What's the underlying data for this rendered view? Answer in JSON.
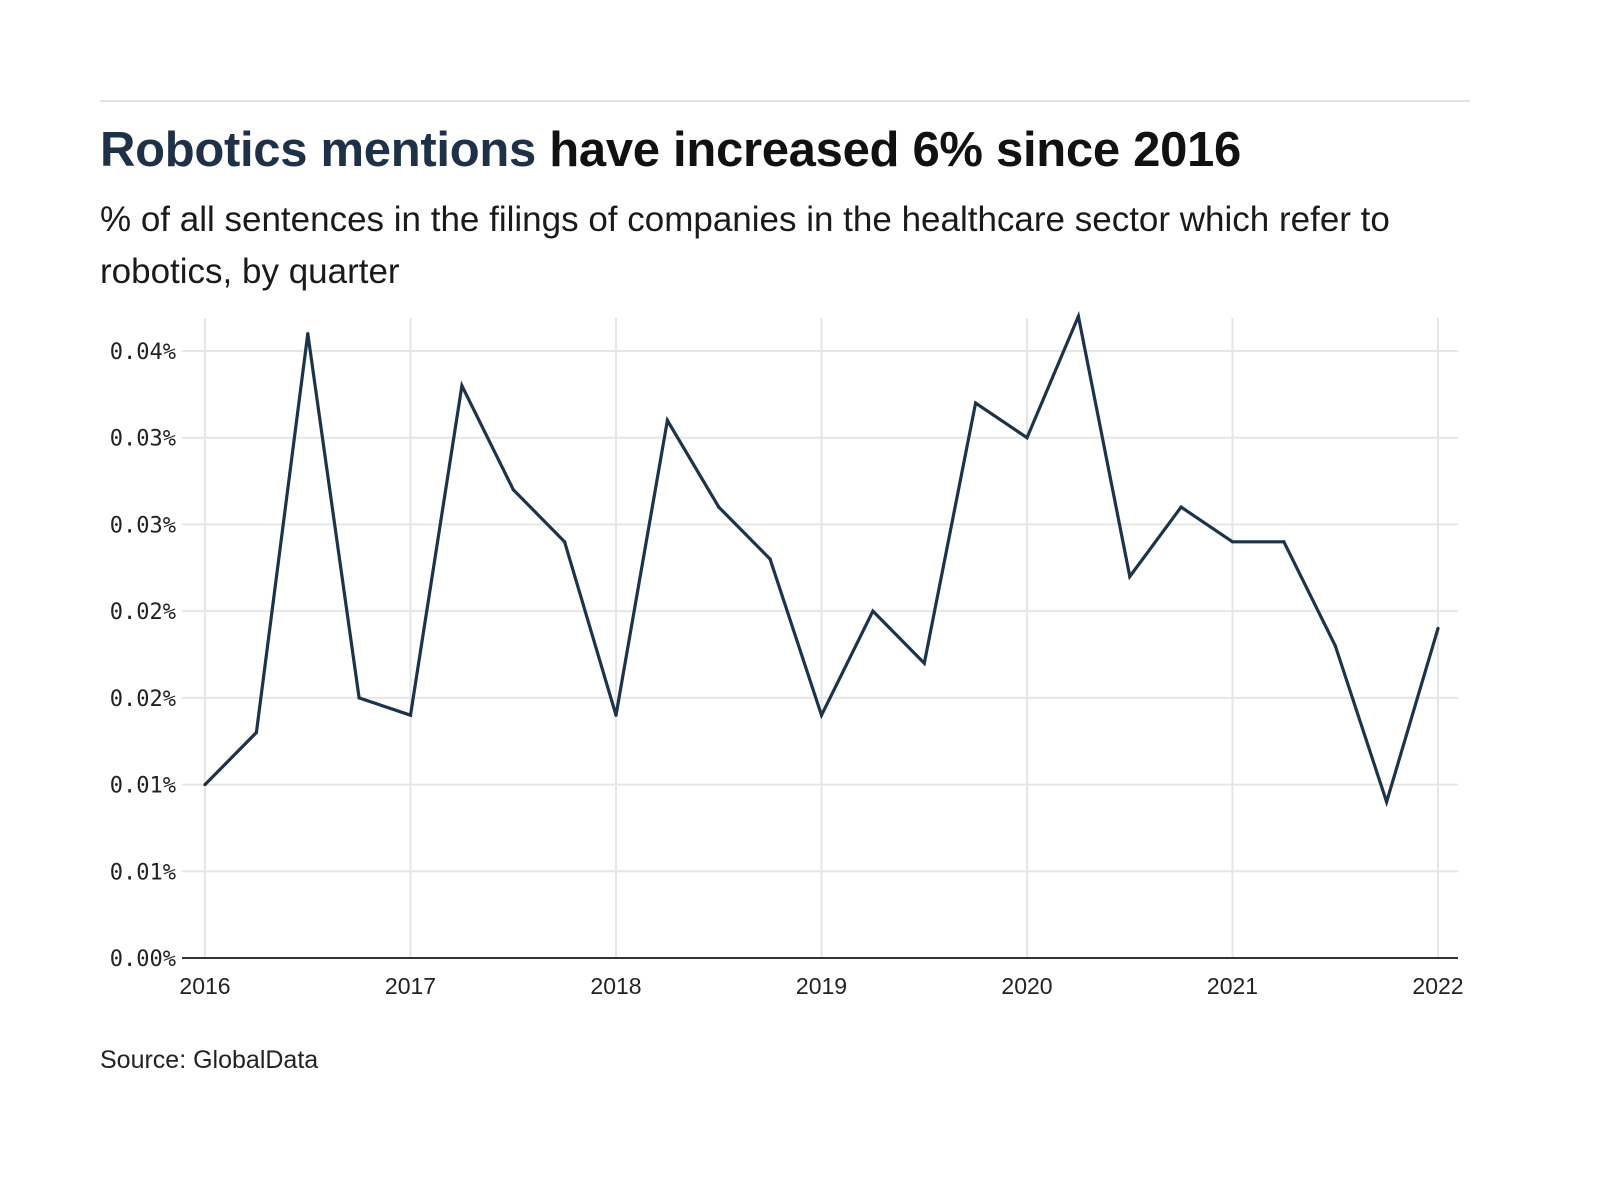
{
  "header": {
    "title_highlight": "Robotics mentions",
    "title_rest": " have increased 6% since 2016",
    "subtitle": "% of all sentences in the filings of companies in the healthcare sector which refer to robotics, by quarter"
  },
  "footer": {
    "source": "Source: GlobalData"
  },
  "colors": {
    "title_highlight": "#1e3148",
    "line": "#1c3349",
    "grid": "#e6e6e6",
    "axis": "#333333"
  },
  "chart_data": {
    "type": "line",
    "title": "Robotics mentions have increased 6% since 2016",
    "subtitle": "% of all sentences in the filings of companies in the healthcare sector which refer to robotics, by quarter",
    "xlabel": "",
    "ylabel": "",
    "grid": true,
    "legend": "none",
    "x": [
      "2016 Q1",
      "2016 Q2",
      "2016 Q3",
      "2016 Q4",
      "2017 Q1",
      "2017 Q2",
      "2017 Q3",
      "2017 Q4",
      "2018 Q1",
      "2018 Q2",
      "2018 Q3",
      "2018 Q4",
      "2019 Q1",
      "2019 Q2",
      "2019 Q3",
      "2019 Q4",
      "2020 Q1",
      "2020 Q2",
      "2020 Q3",
      "2020 Q4",
      "2021 Q1",
      "2021 Q2",
      "2021 Q3",
      "2021 Q4",
      "2022 Q1"
    ],
    "series": [
      {
        "name": "Robotics mentions (%)",
        "values": [
          0.01,
          0.013,
          0.036,
          0.015,
          0.014,
          0.033,
          0.027,
          0.024,
          0.014,
          0.031,
          0.026,
          0.023,
          0.014,
          0.02,
          0.017,
          0.032,
          0.03,
          0.037,
          0.022,
          0.026,
          0.024,
          0.024,
          0.018,
          0.009,
          0.019
        ]
      }
    ],
    "x_tick_labels": [
      "2016",
      "2017",
      "2018",
      "2019",
      "2020",
      "2021",
      "2022"
    ],
    "y_ticks": [
      0.0,
      0.005,
      0.01,
      0.015,
      0.02,
      0.025,
      0.03,
      0.035
    ],
    "y_tick_labels": [
      "0.00%",
      "0.01%",
      "0.01%",
      "0.02%",
      "0.02%",
      "0.03%",
      "0.03%",
      "0.04%"
    ],
    "ylim": [
      0,
      0.037
    ],
    "xlim": [
      "2016 Q1",
      "2022 Q1"
    ]
  }
}
